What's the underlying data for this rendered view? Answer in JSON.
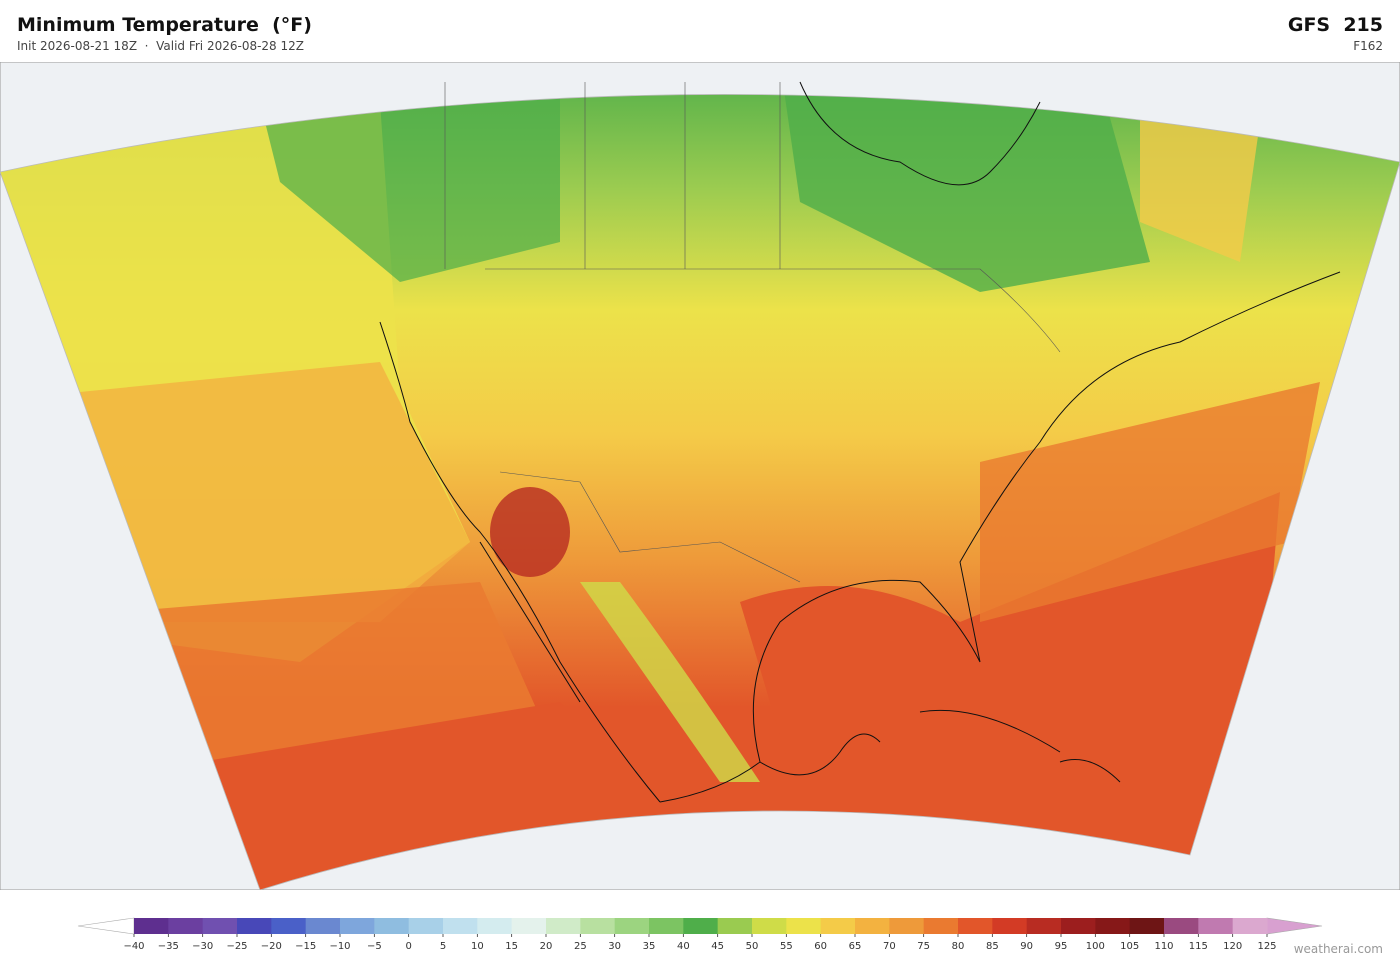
{
  "header": {
    "title": "Minimum Temperature  (°F)",
    "subtitle": "Init 2026-08-21 18Z  ·  Valid Fri 2026-08-28 12Z",
    "model": "GFS  215",
    "forecast_hour": "F162"
  },
  "colorbar": {
    "ticks": [
      {
        "value": -40,
        "label": "−40"
      },
      {
        "value": -35,
        "label": "−35"
      },
      {
        "value": -30,
        "label": "−30"
      },
      {
        "value": -25,
        "label": "−25"
      },
      {
        "value": -20,
        "label": "−20"
      },
      {
        "value": -15,
        "label": "−15"
      },
      {
        "value": -10,
        "label": "−10"
      },
      {
        "value": -5,
        "label": "−5"
      },
      0,
      5,
      10,
      15,
      20,
      25,
      30,
      35,
      40,
      45,
      50,
      55,
      60,
      65,
      70,
      75,
      80,
      85,
      90,
      95,
      100,
      105,
      110,
      115,
      120,
      125
    ],
    "colors": [
      "#5e2f8f",
      "#6b3fa0",
      "#7050b0",
      "#4848b8",
      "#4a60c8",
      "#6a88d0",
      "#7ea6dc",
      "#8fbde0",
      "#a8d0e8",
      "#c0e0ee",
      "#d4ecef",
      "#e4f2ec",
      "#d0ebc8",
      "#b8e0a0",
      "#9cd480",
      "#7cc462",
      "#4fae4a",
      "#9acb50",
      "#cfdc48",
      "#ece24a",
      "#f4cb48",
      "#f3b240",
      "#ee9a3a",
      "#ea7a30",
      "#e2562a",
      "#d33b25",
      "#b82c22",
      "#9c1e1e",
      "#861818",
      "#6e1515",
      "#9a4a80",
      "#c07ab0",
      "#dba8cf"
    ],
    "under_color": "#ffffff",
    "over_color": "#d8a0d0"
  },
  "attribution": "weatherai.com"
}
